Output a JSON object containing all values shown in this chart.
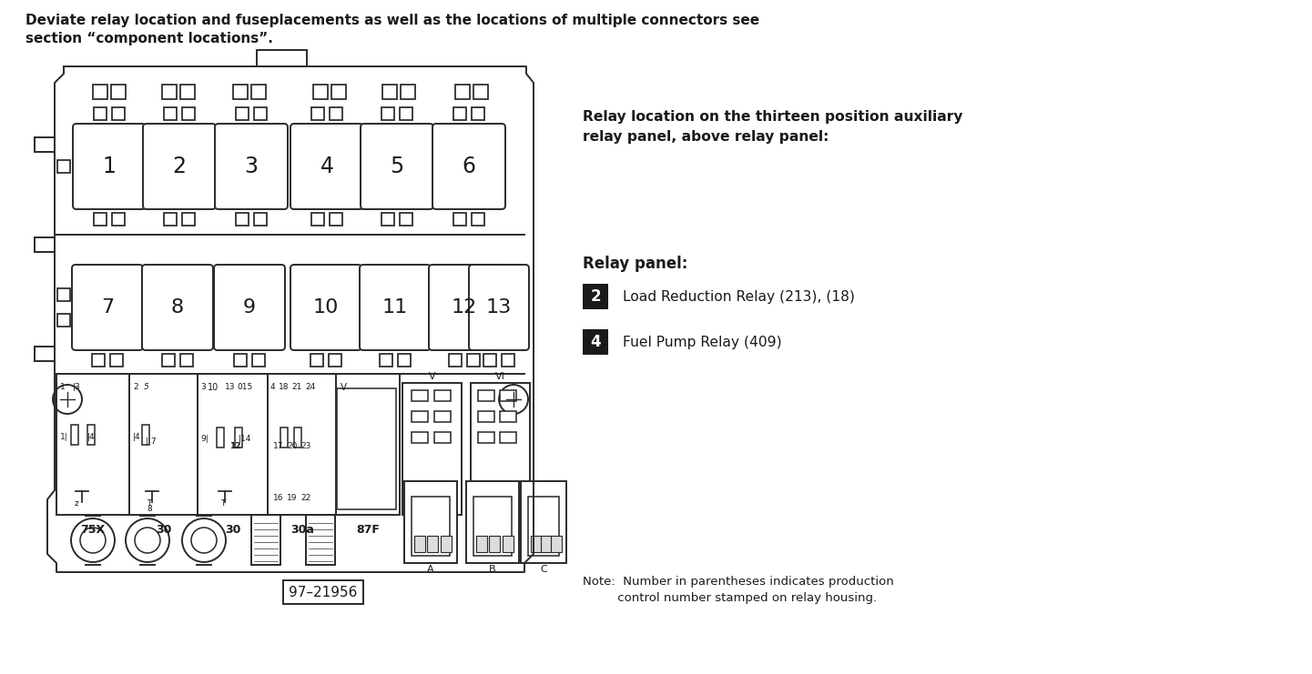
{
  "bg_color": "#ffffff",
  "title_text_line1": "Deviate relay location and fuseplacements as well as the locations of multiple connectors see",
  "title_text_line2": "section “component locations”.",
  "relay_location_header_line1": "Relay location on the thirteen position auxiliary",
  "relay_location_header_line2": "relay panel, above relay panel:",
  "relay_panel_header": "Relay panel:",
  "relay_items": [
    {
      "number": "2",
      "description": "Load Reduction Relay (213), (18)"
    },
    {
      "number": "4",
      "description": "Fuel Pump Relay (409)"
    }
  ],
  "note_line1": "Note:  Number in parentheses indicates production",
  "note_line2": "         control number stamped on relay housing.",
  "diagram_id": "97–21956",
  "top_row_labels": [
    "1",
    "2",
    "3",
    "4",
    "5",
    "6"
  ],
  "bottom_row_labels": [
    "7",
    "8",
    "9",
    "10",
    "11",
    "12",
    "13"
  ],
  "connector_labels": [
    "75X",
    "30",
    "30",
    "30a",
    "87F"
  ],
  "text_color": "#1a1a1a",
  "box_color": "#2a2a2a",
  "lw": 1.4
}
